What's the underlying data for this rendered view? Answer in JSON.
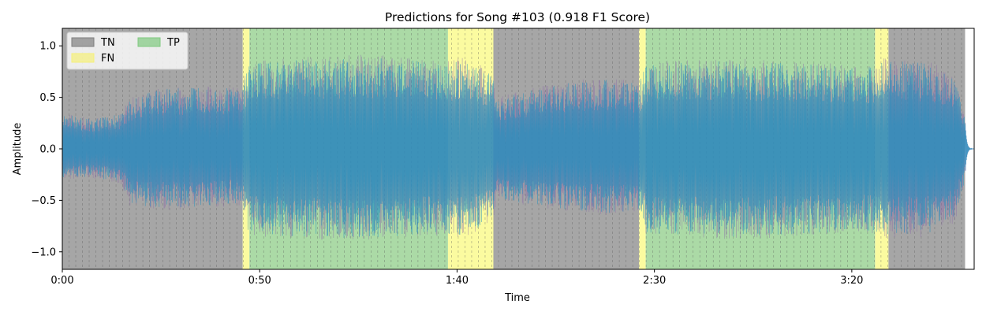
{
  "chart_data": {
    "type": "line",
    "title": "Predictions for Song #103 (0.918 F1 Score)",
    "xlabel": "Time",
    "ylabel": "Amplitude",
    "xlim": [
      0,
      231
    ],
    "ylim": [
      -1.17,
      1.17
    ],
    "x_ticks": [
      {
        "value": 0,
        "label": "0:00"
      },
      {
        "value": 50,
        "label": "0:50"
      },
      {
        "value": 100,
        "label": "1:40"
      },
      {
        "value": 150,
        "label": "2:30"
      },
      {
        "value": 200,
        "label": "3:20"
      }
    ],
    "y_ticks": [
      {
        "value": -1.0,
        "label": "−1.0"
      },
      {
        "value": -0.5,
        "label": "−0.5"
      },
      {
        "value": 0.0,
        "label": "0.0"
      },
      {
        "value": 0.5,
        "label": "0.5"
      },
      {
        "value": 1.0,
        "label": "1.0"
      }
    ],
    "legend": {
      "placement": "top-left",
      "entries": [
        {
          "label": "TN",
          "color": "#808080"
        },
        {
          "label": "FN",
          "color": "#f5f07a"
        },
        {
          "label": "TP",
          "color": "#7fc97f"
        }
      ]
    },
    "segment_colors": {
      "TN": "#a6a6a6",
      "FN": "#fbfba0",
      "TP": "#abdaa6"
    },
    "segments": [
      {
        "start": 0,
        "end": 45.7,
        "label": "TN"
      },
      {
        "start": 45.7,
        "end": 47.4,
        "label": "FN"
      },
      {
        "start": 47.4,
        "end": 97.7,
        "label": "TP"
      },
      {
        "start": 97.7,
        "end": 109.2,
        "label": "FN"
      },
      {
        "start": 109.2,
        "end": 146.1,
        "label": "TN"
      },
      {
        "start": 146.1,
        "end": 147.8,
        "label": "FN"
      },
      {
        "start": 147.8,
        "end": 205.9,
        "label": "TP"
      },
      {
        "start": 205.9,
        "end": 209.3,
        "label": "FN"
      },
      {
        "start": 209.3,
        "end": 228.7,
        "label": "TN"
      }
    ],
    "gridlines_x_interval": 1.7,
    "waveform": {
      "duration": 228.7,
      "fade_end": 231,
      "colors": {
        "primary": "#1f8fbf",
        "secondary": "#8a6aa8"
      },
      "envelope_upper": [
        [
          0,
          0.35
        ],
        [
          7,
          0.3
        ],
        [
          15,
          0.35
        ],
        [
          17,
          0.5
        ],
        [
          25,
          0.6
        ],
        [
          35,
          0.62
        ],
        [
          45.7,
          0.6
        ],
        [
          47,
          0.85
        ],
        [
          60,
          0.9
        ],
        [
          80,
          0.92
        ],
        [
          97,
          0.85
        ],
        [
          102,
          0.9
        ],
        [
          109,
          0.75
        ],
        [
          110,
          0.5
        ],
        [
          125,
          0.65
        ],
        [
          140,
          0.7
        ],
        [
          146,
          0.65
        ],
        [
          148,
          0.85
        ],
        [
          170,
          0.88
        ],
        [
          205,
          0.82
        ],
        [
          209,
          0.9
        ],
        [
          220,
          0.85
        ],
        [
          226,
          0.75
        ],
        [
          228.7,
          0.3
        ]
      ],
      "envelope_lower": [
        [
          0,
          -0.3
        ],
        [
          7,
          -0.28
        ],
        [
          15,
          -0.35
        ],
        [
          17,
          -0.55
        ],
        [
          25,
          -0.6
        ],
        [
          35,
          -0.58
        ],
        [
          45.7,
          -0.55
        ],
        [
          47,
          -0.85
        ],
        [
          60,
          -0.88
        ],
        [
          80,
          -0.9
        ],
        [
          97,
          -0.85
        ],
        [
          102,
          -0.88
        ],
        [
          109,
          -0.72
        ],
        [
          110,
          -0.5
        ],
        [
          125,
          -0.6
        ],
        [
          140,
          -0.65
        ],
        [
          146,
          -0.6
        ],
        [
          148,
          -0.85
        ],
        [
          170,
          -0.88
        ],
        [
          205,
          -0.82
        ],
        [
          209,
          -0.88
        ],
        [
          220,
          -0.85
        ],
        [
          226,
          -0.75
        ],
        [
          228.7,
          -0.3
        ]
      ]
    }
  }
}
